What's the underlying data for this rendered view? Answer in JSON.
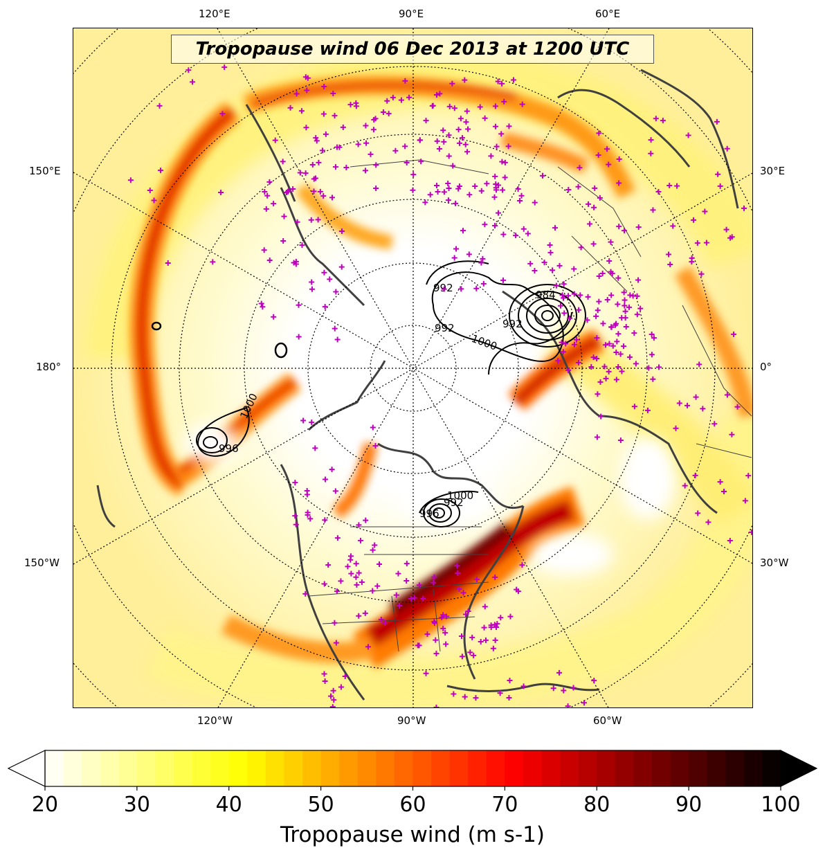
{
  "map": {
    "title": "Tropopause wind 06 Dec 2013 at 1200 UTC",
    "longitude_labels": {
      "top": [
        "120°E",
        "90°E",
        "60°E"
      ],
      "left": [
        "150°E",
        "180°",
        "150°W"
      ],
      "right": [
        "30°E",
        "0°",
        "30°W"
      ],
      "bottom": [
        "120°W",
        "90°W",
        "60°W"
      ]
    },
    "contour_labels": [
      "996",
      "1000",
      "992",
      "1000",
      "992",
      "984",
      "992",
      "1000",
      "996",
      "992"
    ],
    "colors": {
      "coastline": "#404040",
      "station_marker": "#c000c0",
      "contour": "#000000"
    },
    "projection": "north-polar-stereographic"
  },
  "colorbar": {
    "label": "Tropopause wind (m s-1)",
    "ticks": [
      "20",
      "30",
      "40",
      "50",
      "60",
      "70",
      "80",
      "90",
      "100"
    ],
    "min": 20,
    "max": 100,
    "colormap": "hot_r",
    "extend": "both"
  }
}
